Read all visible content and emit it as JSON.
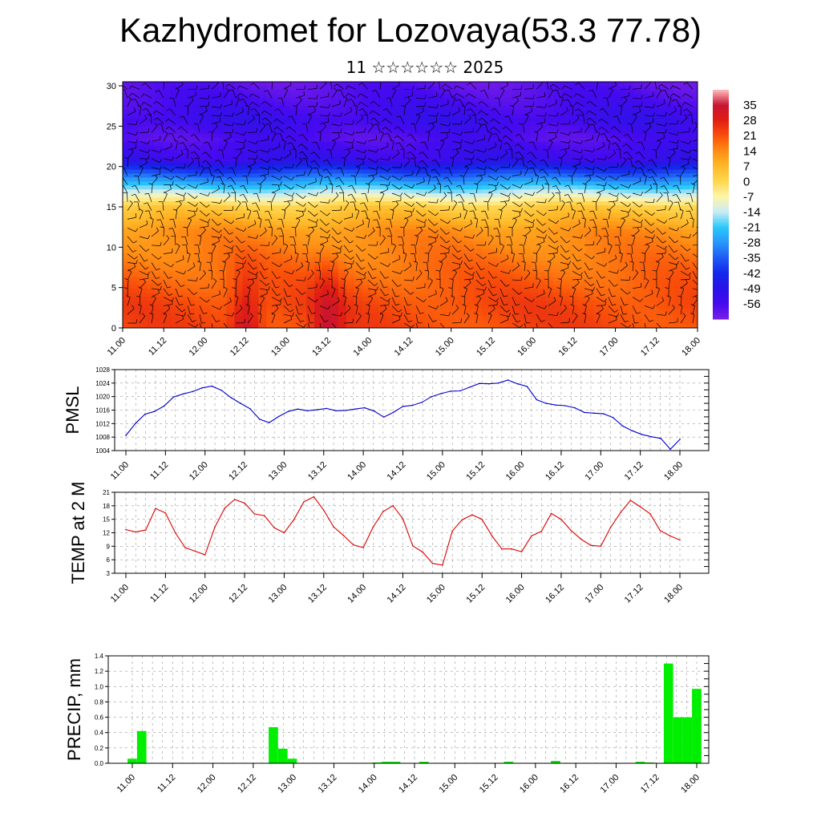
{
  "title": "Kazhydromet for Lozovaya(53.3 77.78)",
  "subtitle": "11 ☆☆☆☆☆☆ 2025",
  "time_labels": [
    "11.00",
    "11.12",
    "12.00",
    "12.12",
    "13.00",
    "13.12",
    "14.00",
    "14.12",
    "15.00",
    "15.12",
    "16.00",
    "16.12",
    "17.00",
    "17.12",
    "18.00"
  ],
  "colors": {
    "pmsl_line": "#0000cc",
    "temp_line": "#dd0000",
    "precip_bar": "#00ee00"
  },
  "chart_data": [
    {
      "type": "heatmap",
      "name": "temperature-wind-cross-section",
      "yticks": [
        0,
        5,
        10,
        15,
        20,
        25,
        30
      ],
      "ylim": [
        0,
        30.5
      ],
      "colorbar_labels": [
        "35",
        "28",
        "21",
        "14",
        "7",
        "0",
        "-7",
        "-14",
        "-21",
        "-28",
        "-35",
        "-42",
        "-49",
        "-56"
      ],
      "colorbar_range": [
        -63,
        42
      ],
      "surface_hotspots_x": [
        12.12,
        13.12,
        16.6,
        17.6
      ],
      "notes_color_bands": [
        {
          "z_min": 0,
          "z_max": 3,
          "value": 25
        },
        {
          "z_min": 3,
          "z_max": 12,
          "value": 14
        },
        {
          "z_min": 12,
          "z_max": 16,
          "value": 3
        },
        {
          "z_min": 16,
          "z_max": 18,
          "value": -14
        },
        {
          "z_min": 18,
          "z_max": 22,
          "value": -38
        },
        {
          "z_min": 22,
          "z_max": 30,
          "value": -56
        }
      ]
    },
    {
      "type": "line",
      "ylabel": "PMSL",
      "ylim": [
        1004,
        1028
      ],
      "yticks": [
        1004,
        1008,
        1012,
        1016,
        1020,
        1024,
        1028
      ],
      "values": [
        1008.5,
        1012,
        1014.8,
        1015.6,
        1017.2,
        1019.9,
        1020.8,
        1021.5,
        1022.6,
        1023.1,
        1021.9,
        1019.7,
        1018,
        1016.4,
        1013.3,
        1012.3,
        1014.1,
        1015.6,
        1016.3,
        1015.8,
        1016.1,
        1016.5,
        1015.8,
        1015.9,
        1016.3,
        1016.7,
        1015.7,
        1013.9,
        1015.3,
        1017.1,
        1017.4,
        1018.3,
        1020,
        1020.9,
        1021.6,
        1021.7,
        1022.8,
        1023.9,
        1023.8,
        1024,
        1024.9,
        1023.8,
        1023,
        1019.1,
        1018,
        1017.5,
        1017.3,
        1016.7,
        1015.3,
        1015.1,
        1014.9,
        1013.8,
        1011.3,
        1009.9,
        1008.8,
        1008.1,
        1007.6,
        1004.4,
        1007.3
      ]
    },
    {
      "type": "line",
      "ylabel": "TEMP at 2 M",
      "ylim": [
        3,
        21
      ],
      "yticks": [
        3,
        6,
        9,
        12,
        15,
        18,
        21
      ],
      "values": [
        12.7,
        12.2,
        12.6,
        17.4,
        16.4,
        12,
        8.7,
        7.9,
        7.1,
        13.3,
        17.5,
        19.4,
        18.6,
        16.2,
        15.8,
        13.1,
        12,
        15,
        18.9,
        20,
        17,
        13.3,
        11.4,
        9.3,
        8.7,
        13.3,
        16.7,
        18,
        15.1,
        9.1,
        7.7,
        5.2,
        4.8,
        12.4,
        14.9,
        16,
        15,
        11.3,
        8.4,
        8.4,
        7.8,
        11.3,
        12.3,
        16.3,
        15,
        12.5,
        10.6,
        9.2,
        9,
        13.2,
        16.5,
        19.2,
        17.8,
        16.2,
        12.5,
        11.3,
        10.4
      ]
    },
    {
      "type": "bar",
      "ylabel": "PRECIP, mm",
      "ylim": [
        0,
        1.4
      ],
      "yticks": [
        "0.0",
        "0.2",
        "0.4",
        "0.6",
        "0.8",
        "1.0",
        "1.2",
        "1.4"
      ],
      "values": [
        0.06,
        0.42,
        0,
        0,
        0,
        0,
        0,
        0,
        0,
        0,
        0,
        0,
        0,
        0,
        0,
        0.47,
        0.19,
        0.06,
        0,
        0,
        0,
        0,
        0,
        0,
        0,
        0,
        0.01,
        0.02,
        0.02,
        0,
        0,
        0.02,
        0,
        0,
        0,
        0,
        0,
        0,
        0,
        0,
        0.02,
        0,
        0,
        0,
        0,
        0.03,
        0,
        0,
        0,
        0,
        0,
        0,
        0,
        0,
        0.02,
        0.01,
        0,
        1.3,
        0.6,
        0.6,
        0.97
      ]
    }
  ]
}
